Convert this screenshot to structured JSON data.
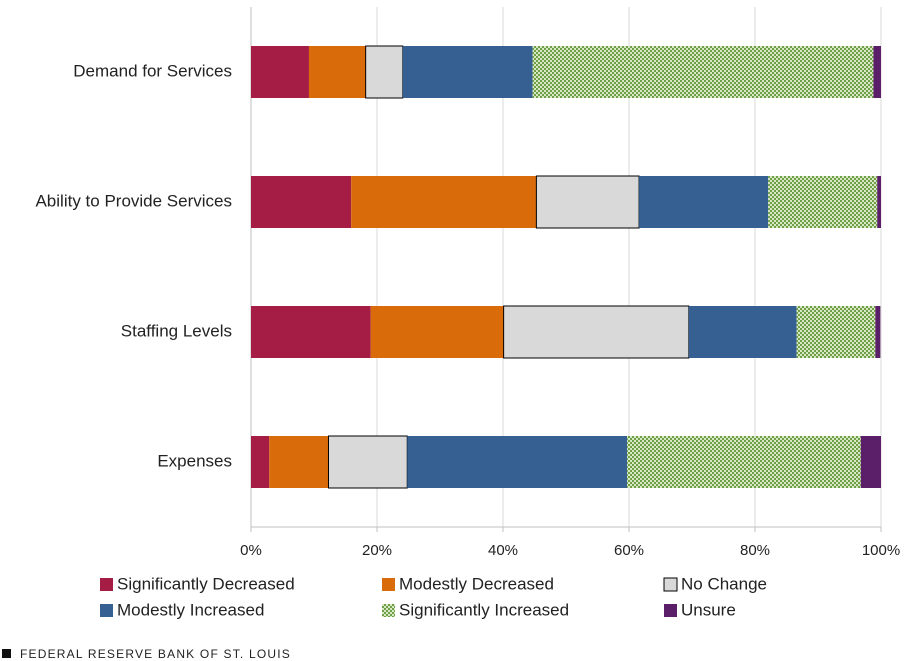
{
  "chart_data": {
    "type": "stacked-barh",
    "categories": [
      "Demand for Services",
      "Ability to Provide Services",
      "Staffing Levels",
      "Expenses"
    ],
    "series": [
      {
        "name": "Significantly Decreased",
        "color": "#a51c45",
        "values": [
          9.2,
          15.9,
          19.0,
          2.9
        ]
      },
      {
        "name": "Modestly Decreased",
        "color": "#d96b0b",
        "values": [
          9.0,
          29.4,
          21.1,
          9.4
        ]
      },
      {
        "name": "No Change",
        "color": "#d9d9d9",
        "edgecolor": "#000000",
        "values": [
          5.9,
          16.3,
          29.4,
          12.5
        ]
      },
      {
        "name": "Modestly Increased",
        "color": "#366092",
        "values": [
          20.6,
          20.5,
          17.1,
          34.9
        ]
      },
      {
        "name": "Significantly Increased",
        "color": "#6f9f46",
        "pattern": "checkered",
        "values": [
          54.1,
          17.3,
          12.5,
          37.1
        ]
      },
      {
        "name": "Unsure",
        "color": "#5b1f69",
        "values": [
          1.2,
          0.6,
          0.8,
          3.2
        ]
      }
    ],
    "xlim": [
      0,
      100
    ],
    "xticks": [
      {
        "value": 0,
        "label": "0%"
      },
      {
        "value": 20,
        "label": "20%"
      },
      {
        "value": 40,
        "label": "40%"
      },
      {
        "value": 60,
        "label": "60%"
      },
      {
        "value": 80,
        "label": "80%"
      },
      {
        "value": 100,
        "label": "100%"
      }
    ],
    "legend": "bottom",
    "source": "FEDERAL RESERVE BANK OF ST. LOUIS"
  }
}
